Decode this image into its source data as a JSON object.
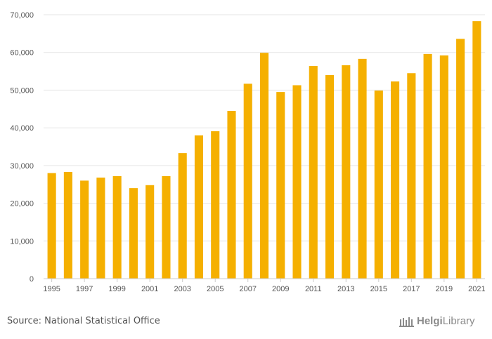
{
  "chart_data": {
    "type": "bar",
    "title": "",
    "xlabel": "",
    "ylabel": "",
    "categories": [
      "1995",
      "1996",
      "1997",
      "1998",
      "1999",
      "2000",
      "2001",
      "2002",
      "2003",
      "2004",
      "2005",
      "2006",
      "2007",
      "2008",
      "2009",
      "2010",
      "2011",
      "2012",
      "2013",
      "2014",
      "2015",
      "2016",
      "2017",
      "2018",
      "2019",
      "2020",
      "2021"
    ],
    "values": [
      28000,
      28300,
      26000,
      26800,
      27200,
      24000,
      24800,
      27200,
      33300,
      38000,
      39100,
      44500,
      51700,
      59900,
      49500,
      51300,
      56400,
      54000,
      56600,
      58300,
      49900,
      52300,
      54500,
      59600,
      59200,
      63600,
      68300
    ],
    "x_tick_labels": [
      "1995",
      "1997",
      "1999",
      "2001",
      "2003",
      "2005",
      "2007",
      "2009",
      "2011",
      "2013",
      "2015",
      "2017",
      "2019",
      "2021"
    ],
    "y_tick_labels": [
      "0",
      "10,000",
      "20,000",
      "30,000",
      "40,000",
      "50,000",
      "60,000",
      "70,000"
    ],
    "y_ticks": [
      0,
      10000,
      20000,
      30000,
      40000,
      50000,
      60000,
      70000
    ],
    "ylim": [
      0,
      70000
    ],
    "grid": true,
    "bar_color": "#F5B000"
  },
  "source": {
    "text": "Source: National Statistical Office"
  },
  "logo": {
    "helgi": "Helgi",
    "library": "Library"
  },
  "colors": {
    "bar": "#F5B000",
    "grid": "#e6e6e6",
    "axis": "#cccccc",
    "text": "#555555",
    "logo": "#8a8a8a"
  }
}
